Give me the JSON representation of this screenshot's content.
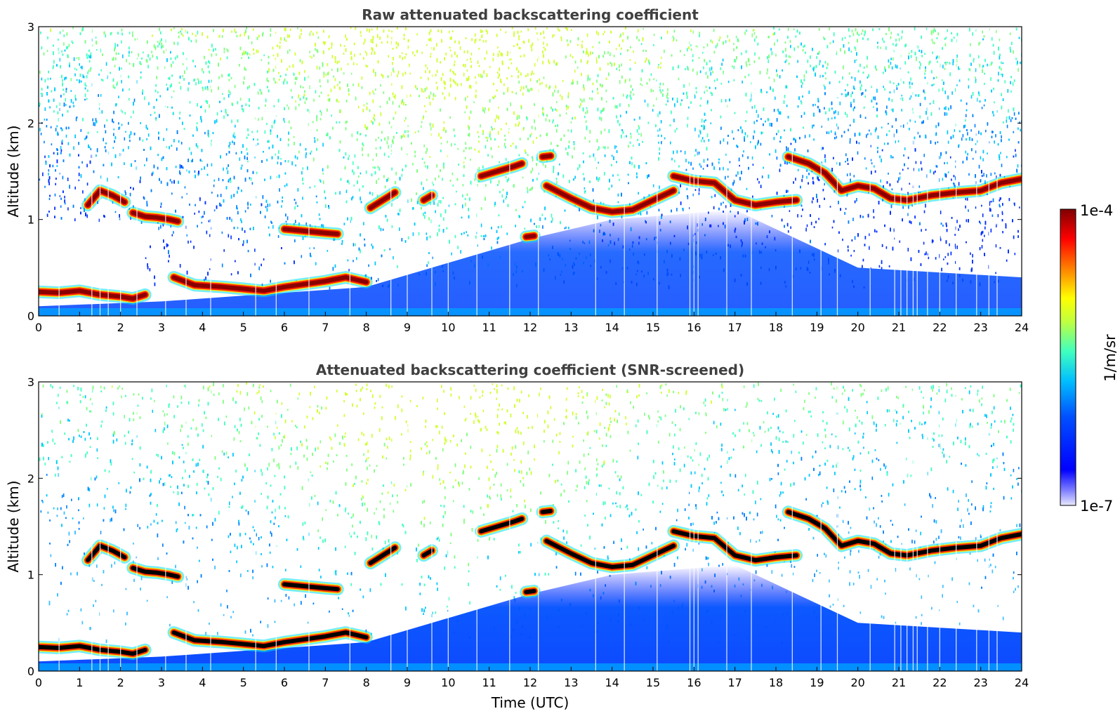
{
  "colors": {
    "jet": [
      "#00007f",
      "#0000ff",
      "#007fff",
      "#00ffff",
      "#7fff7f",
      "#ffff00",
      "#ff7f00",
      "#ff0000",
      "#7f0000"
    ],
    "screened_cloud_core": "#000000",
    "title_color": "#404040"
  },
  "colorbar": {
    "max_label": "1e-4",
    "min_label": "1e-7",
    "unit_label": "1/m/sr",
    "vmin": 1e-07,
    "vmax": 0.0001,
    "scale": "log"
  },
  "chart_data": [
    {
      "type": "heatmap",
      "panel": "raw",
      "title": "Raw attenuated backscattering coefficient",
      "xlabel": "",
      "ylabel": "Altitude (km)",
      "xlim": [
        0,
        24
      ],
      "ylim": [
        0,
        3
      ],
      "xticks": [
        "0",
        "1",
        "2",
        "3",
        "4",
        "5",
        "6",
        "7",
        "8",
        "9",
        "10",
        "11",
        "12",
        "13",
        "14",
        "15",
        "16",
        "17",
        "18",
        "19",
        "20",
        "21",
        "22",
        "23",
        "24"
      ],
      "yticks": [
        "0",
        "1",
        "2",
        "3"
      ],
      "cloud_layers": [
        {
          "t": [
            0.0,
            0.5,
            1.0,
            1.5,
            2.0,
            2.3,
            2.6
          ],
          "z": [
            0.25,
            0.24,
            0.26,
            0.22,
            0.2,
            0.18,
            0.22
          ]
        },
        {
          "t": [
            1.2,
            1.5,
            1.8,
            2.1
          ],
          "z": [
            1.15,
            1.3,
            1.25,
            1.18
          ]
        },
        {
          "t": [
            2.3,
            2.6,
            2.9,
            3.2,
            3.4
          ],
          "z": [
            1.07,
            1.03,
            1.02,
            1.0,
            0.98
          ]
        },
        {
          "t": [
            3.3,
            3.8,
            4.5,
            5.0,
            5.5,
            6.0,
            6.5,
            7.0,
            7.5,
            8.0
          ],
          "z": [
            0.4,
            0.32,
            0.3,
            0.28,
            0.26,
            0.3,
            0.33,
            0.36,
            0.4,
            0.35
          ]
        },
        {
          "t": [
            6.0,
            6.5,
            7.0,
            7.3
          ],
          "z": [
            0.9,
            0.88,
            0.86,
            0.85
          ]
        },
        {
          "t": [
            8.1,
            8.4,
            8.7
          ],
          "z": [
            1.12,
            1.2,
            1.28
          ]
        },
        {
          "t": [
            9.4,
            9.6
          ],
          "z": [
            1.2,
            1.25
          ]
        },
        {
          "t": [
            10.8,
            11.2,
            11.6,
            11.8
          ],
          "z": [
            1.45,
            1.5,
            1.55,
            1.58
          ]
        },
        {
          "t": [
            11.9,
            12.1
          ],
          "z": [
            0.82,
            0.83
          ]
        },
        {
          "t": [
            12.3,
            12.5
          ],
          "z": [
            1.65,
            1.66
          ]
        },
        {
          "t": [
            12.4,
            13.0,
            13.5,
            14.0,
            14.5,
            15.0,
            15.5
          ],
          "z": [
            1.35,
            1.22,
            1.12,
            1.08,
            1.1,
            1.2,
            1.3
          ]
        },
        {
          "t": [
            15.5,
            16.0,
            16.5,
            17.0,
            17.5,
            18.0,
            18.5
          ],
          "z": [
            1.45,
            1.4,
            1.38,
            1.2,
            1.15,
            1.18,
            1.2
          ]
        },
        {
          "t": [
            18.3,
            18.8,
            19.2,
            19.6,
            20.0,
            20.4,
            20.8,
            21.2,
            21.8,
            22.4,
            23.0,
            23.5,
            24.0
          ],
          "z": [
            1.65,
            1.58,
            1.48,
            1.3,
            1.35,
            1.32,
            1.22,
            1.2,
            1.25,
            1.28,
            1.3,
            1.38,
            1.42
          ]
        }
      ]
    },
    {
      "type": "heatmap",
      "panel": "screened",
      "title": "Attenuated backscattering coefficient (SNR-screened)",
      "xlabel": "Time (UTC)",
      "ylabel": "Altitude (km)",
      "xlim": [
        0,
        24
      ],
      "ylim": [
        0,
        3
      ],
      "xticks": [
        "0",
        "1",
        "2",
        "3",
        "4",
        "5",
        "6",
        "7",
        "8",
        "9",
        "10",
        "11",
        "12",
        "13",
        "14",
        "15",
        "16",
        "17",
        "18",
        "19",
        "20",
        "21",
        "22",
        "23",
        "24"
      ],
      "yticks": [
        "0",
        "1",
        "2",
        "3"
      ],
      "cloud_layers": "same as raw panel, saturated cores shown in black"
    }
  ]
}
